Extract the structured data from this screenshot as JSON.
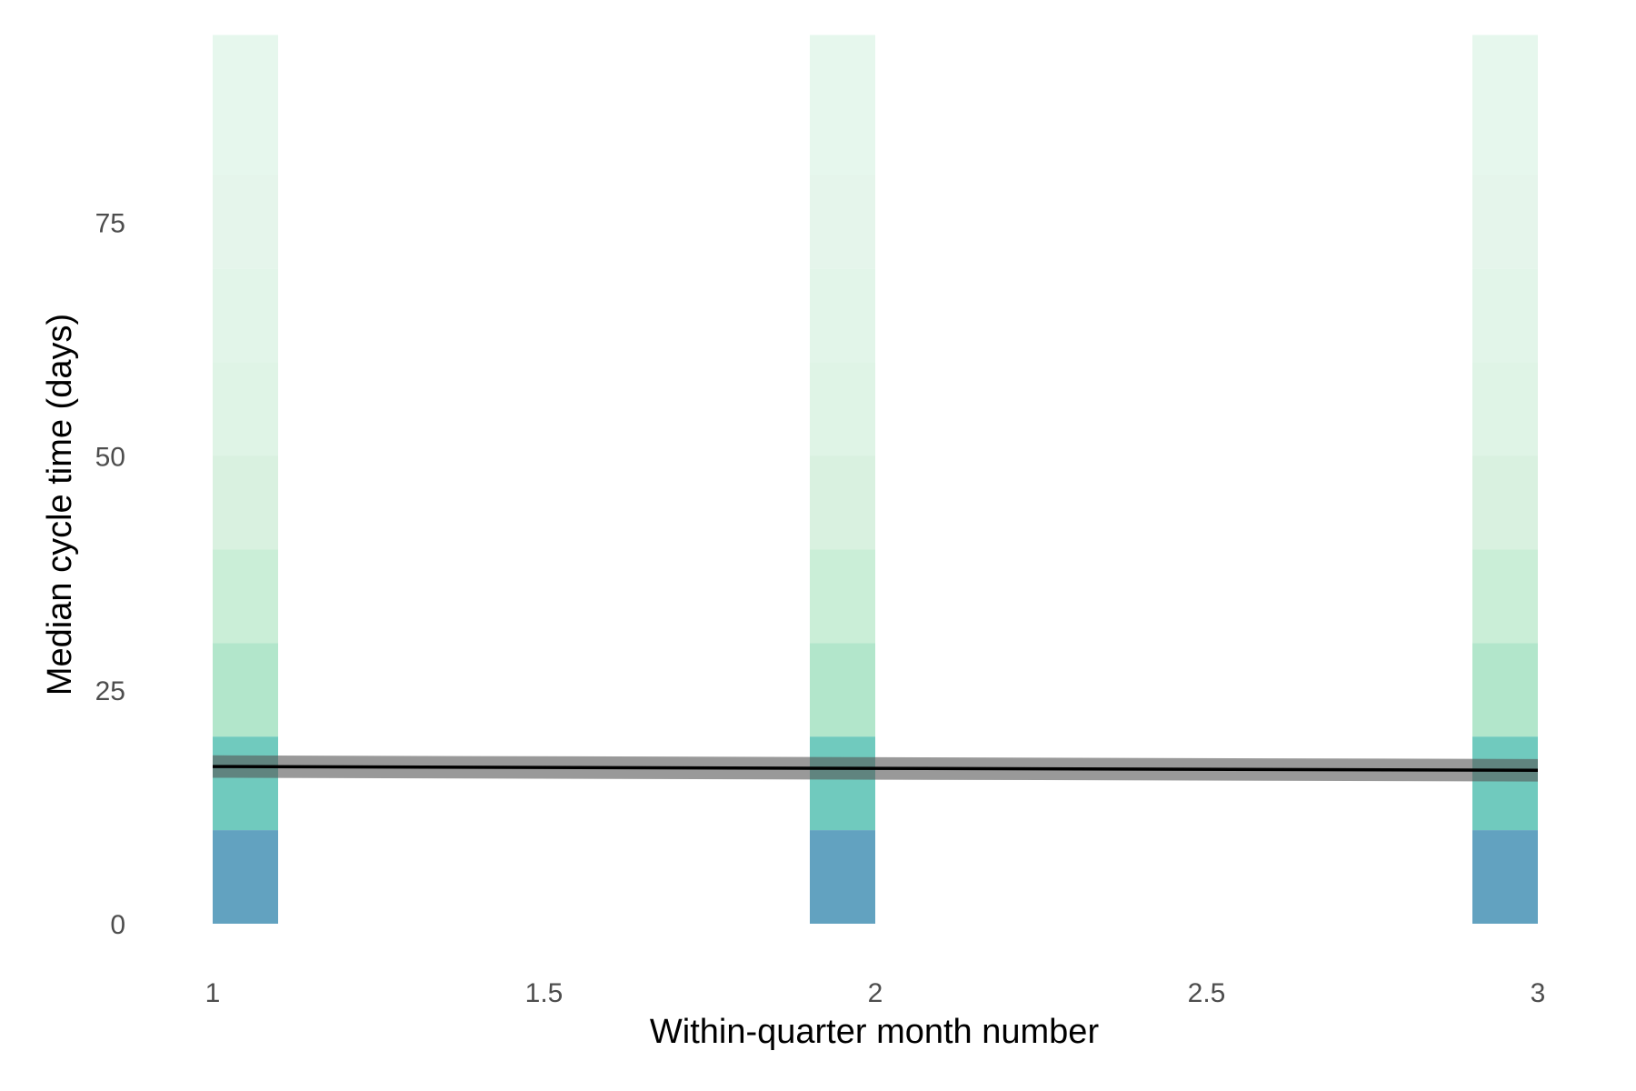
{
  "chart_data": {
    "type": "bar",
    "title": "",
    "xlabel": "Within-quarter month number",
    "ylabel": "Median cycle time (days)",
    "xlim": [
      1,
      3
    ],
    "ylim": [
      0,
      95
    ],
    "x_ticks": [
      "1",
      "1.5",
      "2",
      "2.5",
      "3"
    ],
    "x_tick_values": [
      1,
      1.5,
      2,
      2.5,
      3
    ],
    "y_ticks": [
      "0",
      "25",
      "50",
      "75"
    ],
    "y_tick_values": [
      0,
      25,
      50,
      75
    ],
    "bins": [
      {
        "lo": 0,
        "hi": 10,
        "color": "#3b8bb0",
        "opacity": 0.8
      },
      {
        "lo": 10,
        "hi": 20,
        "color": "#40b8a8",
        "opacity": 0.75
      },
      {
        "lo": 20,
        "hi": 30,
        "color": "#7fd6a8",
        "opacity": 0.6
      },
      {
        "lo": 30,
        "hi": 40,
        "color": "#a6e3bd",
        "opacity": 0.6
      },
      {
        "lo": 40,
        "hi": 50,
        "color": "#bfe8cc",
        "opacity": 0.6
      },
      {
        "lo": 50,
        "hi": 60,
        "color": "#c9ecd6",
        "opacity": 0.6
      },
      {
        "lo": 60,
        "hi": 70,
        "color": "#cfeedb",
        "opacity": 0.6
      },
      {
        "lo": 70,
        "hi": 80,
        "color": "#d3efde",
        "opacity": 0.6
      },
      {
        "lo": 80,
        "hi": 95,
        "color": "#d6f1e1",
        "opacity": 0.6
      }
    ],
    "bars_x": [
      1,
      2,
      3
    ],
    "trend_line": {
      "x": [
        1,
        3
      ],
      "y": [
        16.8,
        16.4
      ],
      "ci_lower": [
        15.6,
        15.2
      ],
      "ci_upper": [
        18.0,
        17.6
      ],
      "color": "#000000",
      "ci_color": "#555555"
    },
    "grid": false,
    "legend": "none"
  }
}
